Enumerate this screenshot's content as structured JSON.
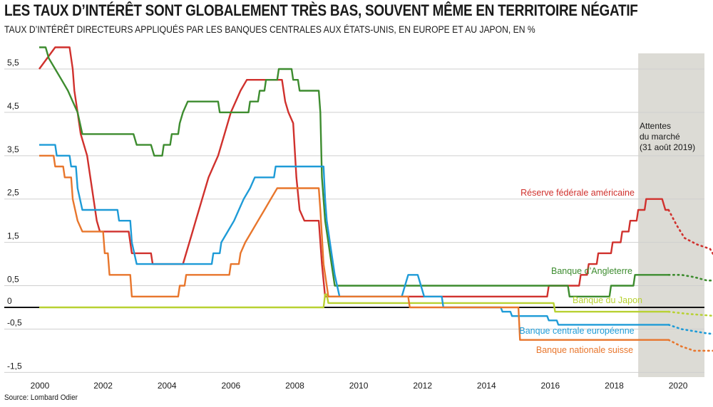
{
  "title": "LES TAUX D’INTÉRÊT SONT GLOBALEMENT TRÈS BAS, SOUVENT MÊME EN TERRITOIRE NÉGATIF",
  "subtitle": "TAUX D’INTÉRÊT DIRECTEURS APPLIQUÉS PAR LES BANQUES CENTRALES AUX ÉTATS-UNIS, EN EUROPE ET AU JAPON, EN %",
  "source": "Source: Lombard Odier",
  "chart_data": {
    "type": "line",
    "ylim": [
      -1.5,
      6.0
    ],
    "xlim": [
      2000,
      2020.6
    ],
    "y_ticks": [
      5.5,
      4.5,
      3.5,
      2.5,
      1.5,
      0.5,
      0,
      -0.5,
      -1.5
    ],
    "y_tick_labels": [
      "5,5",
      "4,5",
      "3,5",
      "2,5",
      "1,5",
      "0,5",
      "0",
      "-0,5",
      "-1,5"
    ],
    "x_ticks": [
      2000,
      2002,
      2004,
      2006,
      2008,
      2010,
      2012,
      2014,
      2016,
      2018,
      2020
    ],
    "x_tick_labels": [
      "2000",
      "2002",
      "2004",
      "2006",
      "2008",
      "2010",
      "2012",
      "2014",
      "2016",
      "2018",
      "2020"
    ],
    "forecast_region": {
      "start": 2018.75,
      "end": 2020.6
    },
    "annotation": [
      "Attentes",
      "du marché",
      "(31 août 2019)"
    ],
    "series": [
      {
        "name": "Réserve fédérale américaine",
        "color": "#d0312d",
        "values": [
          [
            2000,
            5.5
          ],
          [
            2000.5,
            6.0
          ],
          [
            2000.95,
            6.0
          ],
          [
            2001.05,
            5.5
          ],
          [
            2001.1,
            5.0
          ],
          [
            2001.2,
            4.5
          ],
          [
            2001.3,
            4.0
          ],
          [
            2001.4,
            3.75
          ],
          [
            2001.5,
            3.5
          ],
          [
            2001.6,
            3.0
          ],
          [
            2001.7,
            2.5
          ],
          [
            2001.8,
            2.0
          ],
          [
            2001.9,
            1.75
          ],
          [
            2002.8,
            1.75
          ],
          [
            2002.9,
            1.25
          ],
          [
            2003.5,
            1.25
          ],
          [
            2003.55,
            1.0
          ],
          [
            2004.5,
            1.0
          ],
          [
            2004.6,
            1.25
          ],
          [
            2004.7,
            1.5
          ],
          [
            2004.8,
            1.75
          ],
          [
            2004.9,
            2.0
          ],
          [
            2005.0,
            2.25
          ],
          [
            2005.1,
            2.5
          ],
          [
            2005.2,
            2.75
          ],
          [
            2005.3,
            3.0
          ],
          [
            2005.45,
            3.25
          ],
          [
            2005.6,
            3.5
          ],
          [
            2005.7,
            3.75
          ],
          [
            2005.8,
            4.0
          ],
          [
            2006.0,
            4.5
          ],
          [
            2006.3,
            5.0
          ],
          [
            2006.5,
            5.25
          ],
          [
            2007.6,
            5.25
          ],
          [
            2007.7,
            4.75
          ],
          [
            2007.8,
            4.5
          ],
          [
            2007.95,
            4.25
          ],
          [
            2008.05,
            3.0
          ],
          [
            2008.15,
            2.25
          ],
          [
            2008.3,
            2.0
          ],
          [
            2008.75,
            2.0
          ],
          [
            2008.8,
            1.5
          ],
          [
            2008.85,
            1.0
          ],
          [
            2008.95,
            0.25
          ],
          [
            2015.9,
            0.25
          ],
          [
            2015.95,
            0.5
          ],
          [
            2016.9,
            0.5
          ],
          [
            2016.95,
            0.75
          ],
          [
            2017.15,
            0.75
          ],
          [
            2017.2,
            1.0
          ],
          [
            2017.45,
            1.0
          ],
          [
            2017.5,
            1.25
          ],
          [
            2017.9,
            1.25
          ],
          [
            2017.95,
            1.5
          ],
          [
            2018.2,
            1.5
          ],
          [
            2018.25,
            1.75
          ],
          [
            2018.45,
            1.75
          ],
          [
            2018.5,
            2.0
          ],
          [
            2018.7,
            2.0
          ],
          [
            2018.75,
            2.25
          ],
          [
            2018.95,
            2.25
          ],
          [
            2019.0,
            2.5
          ],
          [
            2019.5,
            2.5
          ],
          [
            2019.6,
            2.25
          ],
          [
            2019.7,
            2.25
          ]
        ],
        "forecast": [
          [
            2019.7,
            2.25
          ],
          [
            2019.95,
            1.9
          ],
          [
            2020.2,
            1.6
          ],
          [
            2020.6,
            1.45
          ],
          [
            2021.0,
            1.35
          ],
          [
            2021.2,
            1.1
          ]
        ]
      },
      {
        "name": "Banque d’Angleterre",
        "color": "#3d8c2f",
        "values": [
          [
            2000,
            6.0
          ],
          [
            2000.2,
            6.0
          ],
          [
            2000.3,
            5.75
          ],
          [
            2000.5,
            5.5
          ],
          [
            2000.7,
            5.25
          ],
          [
            2000.9,
            5.0
          ],
          [
            2001.05,
            4.75
          ],
          [
            2001.2,
            4.5
          ],
          [
            2001.35,
            4.0
          ],
          [
            2002.2,
            4.0
          ],
          [
            2002.95,
            4.0
          ],
          [
            2003.05,
            3.75
          ],
          [
            2003.5,
            3.75
          ],
          [
            2003.6,
            3.5
          ],
          [
            2003.85,
            3.5
          ],
          [
            2003.9,
            3.75
          ],
          [
            2004.1,
            3.75
          ],
          [
            2004.15,
            4.0
          ],
          [
            2004.35,
            4.0
          ],
          [
            2004.4,
            4.25
          ],
          [
            2004.5,
            4.5
          ],
          [
            2004.65,
            4.75
          ],
          [
            2005.6,
            4.75
          ],
          [
            2005.65,
            4.5
          ],
          [
            2006.55,
            4.5
          ],
          [
            2006.6,
            4.75
          ],
          [
            2006.85,
            4.75
          ],
          [
            2006.9,
            5.0
          ],
          [
            2007.05,
            5.0
          ],
          [
            2007.1,
            5.25
          ],
          [
            2007.45,
            5.25
          ],
          [
            2007.5,
            5.5
          ],
          [
            2007.9,
            5.5
          ],
          [
            2007.95,
            5.25
          ],
          [
            2008.1,
            5.25
          ],
          [
            2008.15,
            5.0
          ],
          [
            2008.75,
            5.0
          ],
          [
            2008.8,
            4.5
          ],
          [
            2008.85,
            3.0
          ],
          [
            2008.95,
            2.0
          ],
          [
            2009.05,
            1.5
          ],
          [
            2009.15,
            1.0
          ],
          [
            2009.25,
            0.5
          ],
          [
            2016.55,
            0.5
          ],
          [
            2016.6,
            0.25
          ],
          [
            2017.85,
            0.25
          ],
          [
            2017.9,
            0.5
          ],
          [
            2018.6,
            0.5
          ],
          [
            2018.65,
            0.75
          ],
          [
            2019.7,
            0.75
          ]
        ],
        "forecast": [
          [
            2019.7,
            0.75
          ],
          [
            2020.1,
            0.75
          ],
          [
            2020.5,
            0.7
          ],
          [
            2020.9,
            0.62
          ],
          [
            2021.2,
            0.62
          ]
        ]
      },
      {
        "name": "Banque du Japon",
        "color": "#b8d132",
        "values": [
          [
            2000,
            0.0
          ],
          [
            2008.9,
            0.0
          ],
          [
            2008.95,
            0.3
          ],
          [
            2009.0,
            0.3
          ],
          [
            2009.05,
            0.1
          ],
          [
            2016.1,
            0.1
          ],
          [
            2016.15,
            -0.1
          ],
          [
            2019.7,
            -0.1
          ]
        ],
        "forecast": [
          [
            2019.7,
            -0.1
          ],
          [
            2020.3,
            -0.15
          ],
          [
            2021.2,
            -0.2
          ]
        ]
      },
      {
        "name": "Banque centrale européenne",
        "color": "#1e9bd7",
        "values": [
          [
            2000,
            3.75
          ],
          [
            2000.5,
            3.75
          ],
          [
            2000.55,
            3.5
          ],
          [
            2000.95,
            3.5
          ],
          [
            2001.0,
            3.25
          ],
          [
            2001.15,
            3.25
          ],
          [
            2001.2,
            2.75
          ],
          [
            2001.35,
            2.25
          ],
          [
            2002.45,
            2.25
          ],
          [
            2002.5,
            2.0
          ],
          [
            2002.85,
            2.0
          ],
          [
            2002.9,
            1.5
          ],
          [
            2003.05,
            1.0
          ],
          [
            2005.4,
            1.0
          ],
          [
            2005.45,
            1.25
          ],
          [
            2005.65,
            1.25
          ],
          [
            2005.7,
            1.5
          ],
          [
            2005.9,
            1.75
          ],
          [
            2006.1,
            2.0
          ],
          [
            2006.25,
            2.25
          ],
          [
            2006.4,
            2.5
          ],
          [
            2006.6,
            2.75
          ],
          [
            2006.75,
            3.0
          ],
          [
            2007.35,
            3.0
          ],
          [
            2007.4,
            3.25
          ],
          [
            2008.9,
            3.25
          ],
          [
            2008.95,
            2.5
          ],
          [
            2009.0,
            2.0
          ],
          [
            2009.15,
            1.25
          ],
          [
            2009.25,
            0.75
          ],
          [
            2009.4,
            0.25
          ],
          [
            2011.35,
            0.25
          ],
          [
            2011.45,
            0.5
          ],
          [
            2011.55,
            0.75
          ],
          [
            2011.85,
            0.75
          ],
          [
            2011.95,
            0.5
          ],
          [
            2012.05,
            0.25
          ],
          [
            2012.6,
            0.25
          ],
          [
            2012.65,
            0.0
          ],
          [
            2014.45,
            0.0
          ],
          [
            2014.5,
            -0.1
          ],
          [
            2014.75,
            -0.1
          ],
          [
            2014.8,
            -0.2
          ],
          [
            2015.9,
            -0.2
          ],
          [
            2015.95,
            -0.3
          ],
          [
            2016.2,
            -0.3
          ],
          [
            2016.25,
            -0.4
          ],
          [
            2019.7,
            -0.4
          ]
        ],
        "forecast": [
          [
            2019.7,
            -0.4
          ],
          [
            2020.1,
            -0.5
          ],
          [
            2020.5,
            -0.55
          ],
          [
            2020.9,
            -0.6
          ],
          [
            2021.2,
            -0.62
          ]
        ]
      },
      {
        "name": "Banque nationale suisse",
        "color": "#e8762c",
        "values": [
          [
            2000,
            3.5
          ],
          [
            2000.45,
            3.5
          ],
          [
            2000.5,
            3.25
          ],
          [
            2000.75,
            3.25
          ],
          [
            2000.8,
            3.0
          ],
          [
            2001.0,
            3.0
          ],
          [
            2001.05,
            2.5
          ],
          [
            2001.2,
            2.0
          ],
          [
            2001.35,
            1.75
          ],
          [
            2002.0,
            1.75
          ],
          [
            2002.05,
            1.25
          ],
          [
            2002.15,
            1.25
          ],
          [
            2002.2,
            0.75
          ],
          [
            2002.85,
            0.75
          ],
          [
            2002.9,
            0.25
          ],
          [
            2004.35,
            0.25
          ],
          [
            2004.4,
            0.5
          ],
          [
            2004.55,
            0.5
          ],
          [
            2004.6,
            0.75
          ],
          [
            2005.95,
            0.75
          ],
          [
            2006.0,
            1.0
          ],
          [
            2006.25,
            1.0
          ],
          [
            2006.3,
            1.25
          ],
          [
            2006.45,
            1.5
          ],
          [
            2006.65,
            1.75
          ],
          [
            2006.85,
            2.0
          ],
          [
            2007.05,
            2.25
          ],
          [
            2007.25,
            2.5
          ],
          [
            2007.45,
            2.75
          ],
          [
            2008.75,
            2.75
          ],
          [
            2008.8,
            2.25
          ],
          [
            2008.9,
            1.0
          ],
          [
            2009.0,
            0.5
          ],
          [
            2009.05,
            0.25
          ],
          [
            2011.55,
            0.25
          ],
          [
            2011.6,
            0.0
          ],
          [
            2015.0,
            0.0
          ],
          [
            2015.05,
            -0.75
          ],
          [
            2019.7,
            -0.75
          ]
        ],
        "forecast": [
          [
            2019.7,
            -0.75
          ],
          [
            2020.1,
            -0.9
          ],
          [
            2020.5,
            -1.0
          ],
          [
            2021.2,
            -1.0
          ]
        ]
      }
    ],
    "labels": [
      {
        "text": "Réserve fédérale américaine",
        "series": 0
      },
      {
        "text": "Banque d’Angleterre",
        "series": 1
      },
      {
        "text": "Banque du Japon",
        "series": 2
      },
      {
        "text": "Banque centrale européenne",
        "series": 3
      },
      {
        "text": "Banque nationale suisse",
        "series": 4
      }
    ]
  }
}
